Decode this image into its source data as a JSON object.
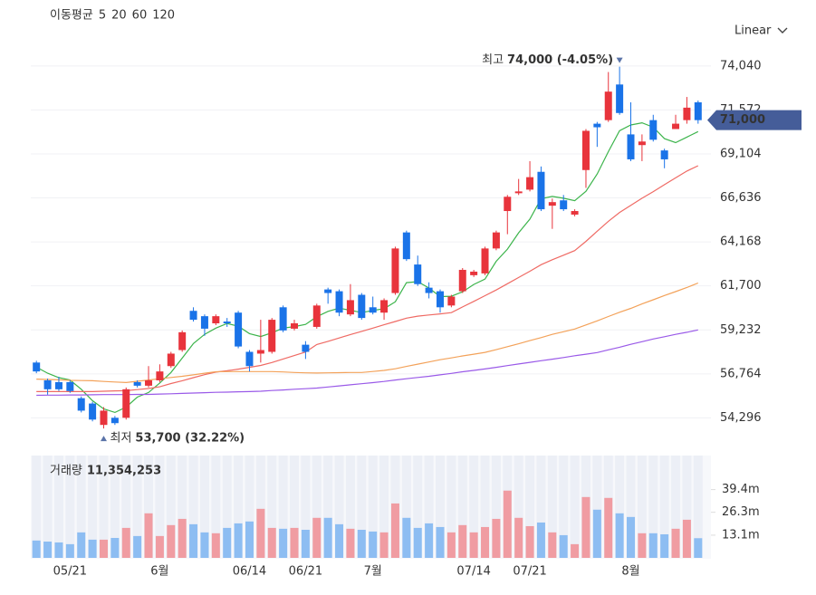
{
  "chart_data": [
    {
      "type": "candlestick",
      "legend_title": "이동평균",
      "scale_selector": "Linear",
      "categories": [
        null,
        null,
        null,
        "05/21",
        null,
        null,
        null,
        null,
        null,
        null,
        null,
        "6월",
        null,
        null,
        null,
        null,
        null,
        null,
        null,
        "06/14",
        null,
        null,
        null,
        null,
        "06/21",
        null,
        null,
        null,
        null,
        null,
        "7월",
        null,
        null,
        null,
        null,
        null,
        null,
        null,
        null,
        "07/14",
        null,
        null,
        null,
        null,
        "07/21",
        null,
        null,
        null,
        null,
        null,
        null,
        null,
        null,
        "8월",
        null,
        null,
        null,
        null,
        null,
        null
      ],
      "open": [
        57400,
        56400,
        56300,
        56300,
        55400,
        55100,
        53900,
        54300,
        54300,
        56300,
        56100,
        56400,
        57200,
        58100,
        60300,
        60000,
        59600,
        59700,
        60200,
        58000,
        57900,
        58000,
        60500,
        59300,
        58400,
        59400,
        61500,
        61400,
        60100,
        61200,
        60500,
        60200,
        61300,
        64700,
        62900,
        61600,
        61400,
        60600,
        61400,
        62300,
        62400,
        63800,
        65900,
        66900,
        67100,
        68100,
        66200,
        66500,
        65700,
        68200,
        70800,
        71000,
        73000,
        70200,
        69600,
        71000,
        69300,
        70500,
        71000,
        72000
      ],
      "high": [
        57500,
        56500,
        56600,
        56400,
        55500,
        55200,
        54900,
        54400,
        56000,
        56400,
        57200,
        57300,
        58000,
        59200,
        60500,
        60100,
        60100,
        59900,
        60300,
        58100,
        59800,
        59900,
        60600,
        59800,
        58600,
        60700,
        61600,
        61500,
        61800,
        61300,
        61100,
        61000,
        63900,
        64800,
        63400,
        61900,
        61500,
        61200,
        62700,
        62600,
        63900,
        64800,
        66800,
        67700,
        68700,
        68400,
        66600,
        66800,
        66000,
        70500,
        70900,
        73700,
        74000,
        72000,
        70200,
        71300,
        69400,
        71300,
        72300,
        72100
      ],
      "low": [
        56800,
        55600,
        55800,
        55700,
        54600,
        54100,
        53700,
        53900,
        54200,
        56000,
        56000,
        56300,
        57100,
        58000,
        59700,
        58900,
        59500,
        59400,
        58200,
        56900,
        57400,
        57900,
        59100,
        59200,
        57600,
        59300,
        60700,
        60000,
        60000,
        59800,
        60100,
        59800,
        61200,
        63100,
        61700,
        61000,
        60200,
        60500,
        61300,
        62200,
        62300,
        63700,
        64600,
        66800,
        67000,
        65900,
        64900,
        65900,
        65600,
        67200,
        69500,
        70900,
        71300,
        68700,
        68700,
        69800,
        68300,
        70500,
        70800,
        70800
      ],
      "close": [
        56900,
        55900,
        55900,
        55800,
        54700,
        54200,
        54700,
        54000,
        55900,
        56100,
        56400,
        56900,
        57900,
        59100,
        59800,
        59300,
        60000,
        59600,
        58300,
        57200,
        58100,
        59800,
        59200,
        59600,
        58000,
        60600,
        61300,
        60200,
        60900,
        59900,
        60200,
        60900,
        63800,
        63200,
        61800,
        61300,
        60500,
        61100,
        62600,
        62500,
        63800,
        64700,
        66700,
        67000,
        67800,
        66000,
        66400,
        66000,
        65900,
        70400,
        70600,
        72600,
        71400,
        68800,
        69800,
        69900,
        68800,
        70800,
        71700,
        71000
      ],
      "up_color": "#e8343c",
      "down_color": "#1a73e8",
      "series": [
        {
          "name": "5",
          "color": "#3cb44b",
          "values": [
            57140,
            56800,
            56550,
            56420,
            55900,
            55260,
            54800,
            54600,
            54900,
            55460,
            55720,
            56250,
            56840,
            57650,
            58470,
            58980,
            59330,
            59590,
            59440,
            59020,
            58860,
            59070,
            59330,
            59420,
            59540,
            59970,
            60270,
            60450,
            60330,
            60200,
            60320,
            60420,
            60810,
            61880,
            61940,
            61580,
            61100,
            61120,
            61370,
            61780,
            62080,
            63080,
            63760,
            64680,
            65450,
            66590,
            66720,
            66620,
            66480,
            67010,
            67980,
            69230,
            70410,
            70730,
            70850,
            70600,
            69960,
            69740,
            70050,
            70360
          ]
        },
        {
          "name": "20",
          "color": "#ef6a64",
          "values": [
            55770,
            55770,
            55770,
            55770,
            55770,
            55770,
            55790,
            55810,
            55820,
            55880,
            55940,
            56040,
            56220,
            56380,
            56550,
            56720,
            56860,
            56940,
            57030,
            57130,
            57240,
            57400,
            57600,
            57790,
            57990,
            58410,
            58590,
            58780,
            58970,
            59150,
            59330,
            59520,
            59700,
            59890,
            60000,
            60070,
            60130,
            60200,
            60520,
            60830,
            61150,
            61470,
            61820,
            62170,
            62520,
            62890,
            63170,
            63420,
            63680,
            64200,
            64770,
            65320,
            65820,
            66220,
            66620,
            66990,
            67380,
            67760,
            68140,
            68440
          ]
        },
        {
          "name": "60",
          "color": "#f3a25a",
          "values": [
            56470,
            56450,
            56430,
            56400,
            56390,
            56380,
            56340,
            56310,
            56280,
            56350,
            56420,
            56490,
            56560,
            56630,
            56710,
            56800,
            56880,
            56890,
            56890,
            56890,
            56890,
            56890,
            56870,
            56840,
            56820,
            56810,
            56820,
            56830,
            56840,
            56840,
            56900,
            56960,
            57050,
            57180,
            57310,
            57430,
            57560,
            57660,
            57770,
            57870,
            57970,
            58120,
            58290,
            58450,
            58630,
            58800,
            58980,
            59130,
            59280,
            59510,
            59740,
            59980,
            60220,
            60440,
            60690,
            60920,
            61160,
            61380,
            61610,
            61860
          ]
        },
        {
          "name": "120",
          "color": "#9a5ae8",
          "values": [
            55560,
            55570,
            55570,
            55580,
            55580,
            55590,
            55600,
            55600,
            55600,
            55610,
            55610,
            55630,
            55650,
            55670,
            55690,
            55710,
            55730,
            55740,
            55760,
            55770,
            55790,
            55830,
            55860,
            55900,
            55930,
            55970,
            56030,
            56090,
            56150,
            56210,
            56270,
            56340,
            56420,
            56490,
            56560,
            56630,
            56710,
            56790,
            56880,
            56960,
            57040,
            57130,
            57230,
            57320,
            57410,
            57500,
            57590,
            57680,
            57780,
            57870,
            57960,
            58110,
            58260,
            58420,
            58570,
            58720,
            58850,
            58980,
            59100,
            59230
          ]
        }
      ],
      "ylim": [
        53300,
        75200
      ],
      "yticks": [
        {
          "value": 54296,
          "label": "54,296"
        },
        {
          "value": 56764,
          "label": "56,764"
        },
        {
          "value": 59232,
          "label": "59,232"
        },
        {
          "value": 61700,
          "label": "61,700"
        },
        {
          "value": 64168,
          "label": "64,168"
        },
        {
          "value": 66636,
          "label": "66,636"
        },
        {
          "value": 69104,
          "label": "69,104"
        },
        {
          "value": 71572,
          "label": "71,572"
        },
        {
          "value": 74040,
          "label": "74,040"
        }
      ],
      "grid": true,
      "current_price": {
        "value": 71000,
        "label": "71,000"
      },
      "high_marker": {
        "value": 74000,
        "prefix": "최고",
        "label": "74,000 (-4.05%)"
      },
      "low_marker": {
        "value": 53700,
        "prefix": "최저",
        "label": "53,700 (32.22%)"
      }
    },
    {
      "type": "bar",
      "title": "거래량",
      "current_label": "11,354,253",
      "up_color": "#f09ca2",
      "down_color": "#8dbdf2",
      "values": [
        10000000,
        9400000,
        8900000,
        7900000,
        14700000,
        10500000,
        10500000,
        11500000,
        17300000,
        12600000,
        25700000,
        12600000,
        18900000,
        22500000,
        19400000,
        14700000,
        14200000,
        17300000,
        19900000,
        21000000,
        28300000,
        17300000,
        16800000,
        17300000,
        16200000,
        23100000,
        23100000,
        19400000,
        16800000,
        16200000,
        15200000,
        14700000,
        31400000,
        23100000,
        17300000,
        19900000,
        17800000,
        14700000,
        18900000,
        14700000,
        17800000,
        22500000,
        38800000,
        23100000,
        18300000,
        20400000,
        14700000,
        13100000,
        7900000,
        35100000,
        27800000,
        34600000,
        25700000,
        23600000,
        14200000,
        14200000,
        13600000,
        16800000,
        22000000,
        11354253
      ],
      "ylim": [
        0,
        58000000
      ],
      "yticks": [
        {
          "value": 13100000,
          "label": "13.1m"
        },
        {
          "value": 26300000,
          "label": "26.3m"
        },
        {
          "value": 39400000,
          "label": "39.4m"
        }
      ]
    }
  ]
}
